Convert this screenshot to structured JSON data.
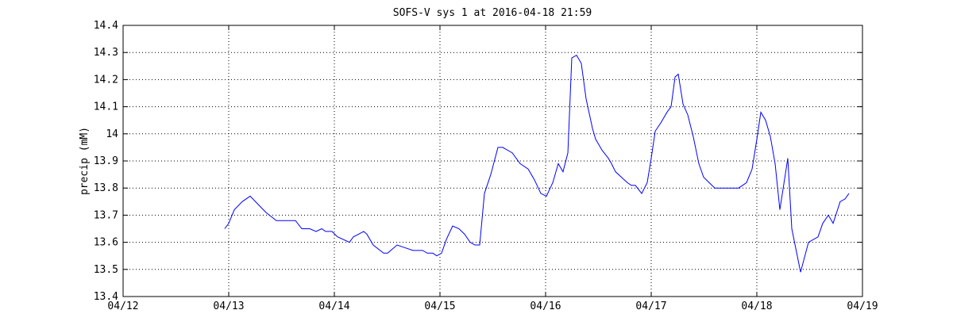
{
  "chart_data": {
    "type": "line",
    "title": "SOFS-V sys 1 at 2016-04-18 21:59",
    "y_label": "precip (mM)",
    "color": "#0000ff",
    "grid": true,
    "xlim": [
      12,
      19
    ],
    "xticks": [
      {
        "value": 12,
        "label": "04/12"
      },
      {
        "value": 13,
        "label": "04/13"
      },
      {
        "value": 14,
        "label": "04/14"
      },
      {
        "value": 15,
        "label": "04/15"
      },
      {
        "value": 16,
        "label": "04/16"
      },
      {
        "value": 17,
        "label": "04/17"
      },
      {
        "value": 18,
        "label": "04/18"
      },
      {
        "value": 19,
        "label": "04/19"
      }
    ],
    "ylim": [
      13.4,
      14.4
    ],
    "yticks": [
      13.4,
      13.5,
      13.6,
      13.7,
      13.8,
      13.9,
      14,
      14.1,
      14.2,
      14.3,
      14.4
    ],
    "x": [
      12.962,
      13.0,
      13.053,
      13.128,
      13.203,
      13.278,
      13.353,
      13.451,
      13.541,
      13.632,
      13.692,
      13.767,
      13.827,
      13.88,
      13.917,
      13.977,
      14.03,
      14.143,
      14.18,
      14.278,
      14.308,
      14.368,
      14.466,
      14.504,
      14.594,
      14.669,
      14.744,
      14.835,
      14.88,
      14.932,
      14.97,
      15.015,
      15.06,
      15.12,
      15.18,
      15.233,
      15.286,
      15.331,
      15.376,
      15.421,
      15.481,
      15.549,
      15.594,
      15.684,
      15.759,
      15.835,
      15.895,
      15.955,
      16.008,
      16.068,
      16.12,
      16.165,
      16.211,
      16.248,
      16.293,
      16.338,
      16.383,
      16.444,
      16.474,
      16.534,
      16.594,
      16.624,
      16.662,
      16.774,
      16.812,
      16.85,
      16.91,
      16.962,
      17.0,
      17.038,
      17.09,
      17.15,
      17.188,
      17.226,
      17.256,
      17.301,
      17.346,
      17.398,
      17.451,
      17.496,
      17.549,
      17.602,
      17.827,
      17.902,
      17.955,
      18.0,
      18.038,
      18.083,
      18.128,
      18.173,
      18.218,
      18.293,
      18.331,
      18.414,
      18.489,
      18.579,
      18.624,
      18.677,
      18.722,
      18.789,
      18.835,
      18.872
    ],
    "values": [
      13.65,
      13.67,
      13.72,
      13.75,
      13.77,
      13.74,
      13.71,
      13.68,
      13.68,
      13.68,
      13.65,
      13.65,
      13.64,
      13.65,
      13.64,
      13.64,
      13.62,
      13.6,
      13.62,
      13.64,
      13.63,
      13.59,
      13.56,
      13.56,
      13.59,
      13.58,
      13.57,
      13.57,
      13.56,
      13.56,
      13.55,
      13.56,
      13.61,
      13.66,
      13.65,
      13.63,
      13.6,
      13.59,
      13.59,
      13.78,
      13.85,
      13.95,
      13.95,
      13.93,
      13.89,
      13.87,
      13.83,
      13.78,
      13.77,
      13.82,
      13.89,
      13.86,
      13.93,
      14.28,
      14.29,
      14.26,
      14.13,
      14.02,
      13.98,
      13.94,
      13.91,
      13.89,
      13.86,
      13.82,
      13.81,
      13.81,
      13.78,
      13.82,
      13.91,
      14.01,
      14.04,
      14.08,
      14.1,
      14.21,
      14.22,
      14.11,
      14.07,
      13.99,
      13.89,
      13.84,
      13.82,
      13.8,
      13.8,
      13.82,
      13.87,
      13.98,
      14.08,
      14.05,
      13.99,
      13.89,
      13.72,
      13.91,
      13.65,
      13.49,
      13.6,
      13.62,
      13.67,
      13.7,
      13.67,
      13.75,
      13.76,
      13.78
    ]
  }
}
